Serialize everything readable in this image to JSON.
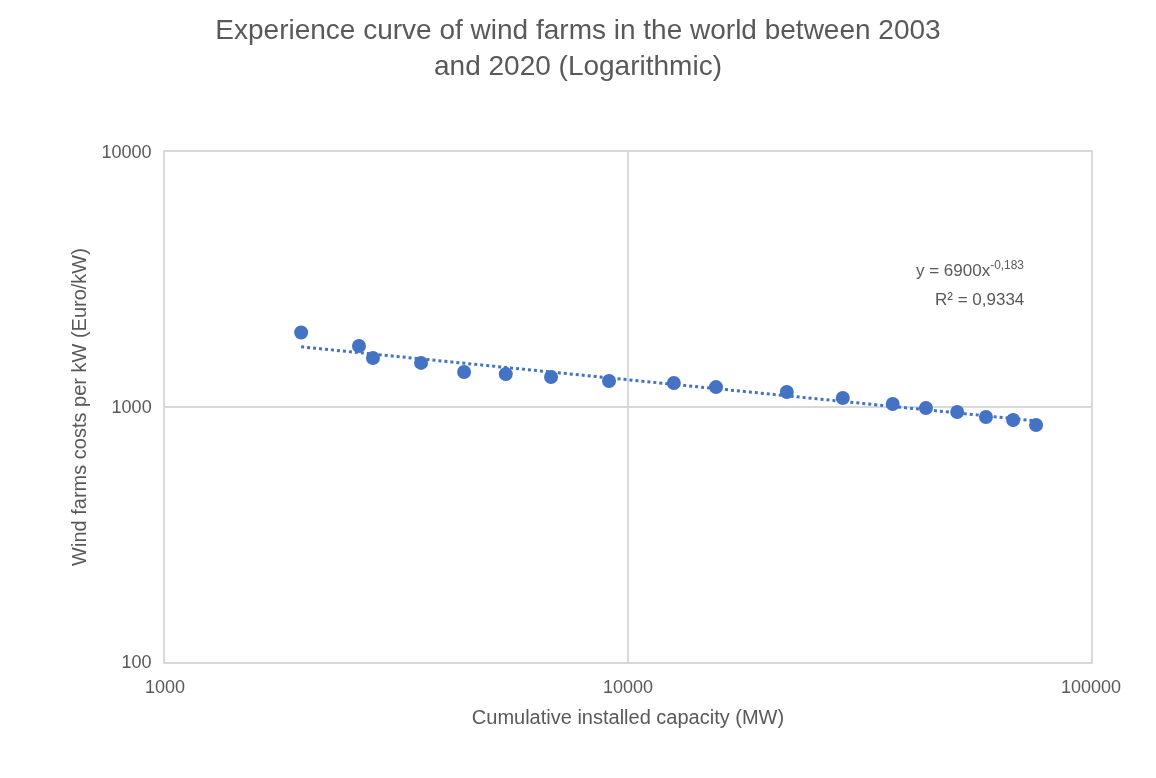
{
  "chart_data": {
    "type": "scatter",
    "title": "Experience curve of wind farms in the world between 2003 and 2020 (Logarithmic)",
    "xlabel": "Cumulative installed capacity (MW)",
    "ylabel": "Wind farms costs per kW (Euro/kW)",
    "x": [
      1968,
      2624,
      2813,
      3573,
      4426,
      5445,
      6820,
      9100,
      12560,
      15490,
      22030,
      29100,
      37300,
      44000,
      51400,
      59300,
      67900,
      76100
    ],
    "series": [
      {
        "color": "#4472c4",
        "marker": "circle",
        "values": [
          1960,
          1734,
          1556,
          1489,
          1372,
          1346,
          1311,
          1265,
          1242,
          1197,
          1145,
          1084,
          1027,
          991,
          956,
          914,
          889,
          850
        ]
      },
      {
        "type": "line",
        "color": "#4472c4",
        "line_style": "dotted",
        "marker": "none",
        "x": [
          1968,
          76100
        ],
        "values": [
          1722,
          882
        ]
      }
    ],
    "annotations": [
      "y = 6900x$^{-0,183}$",
      "R² = 0,9334"
    ],
    "log": "xy",
    "xlim": [
      1000,
      100000
    ],
    "xticks": [
      1000,
      10000,
      100000
    ],
    "ylim": [
      100,
      10000
    ],
    "yticks": [
      100,
      1000,
      10000
    ],
    "grid": true
  }
}
